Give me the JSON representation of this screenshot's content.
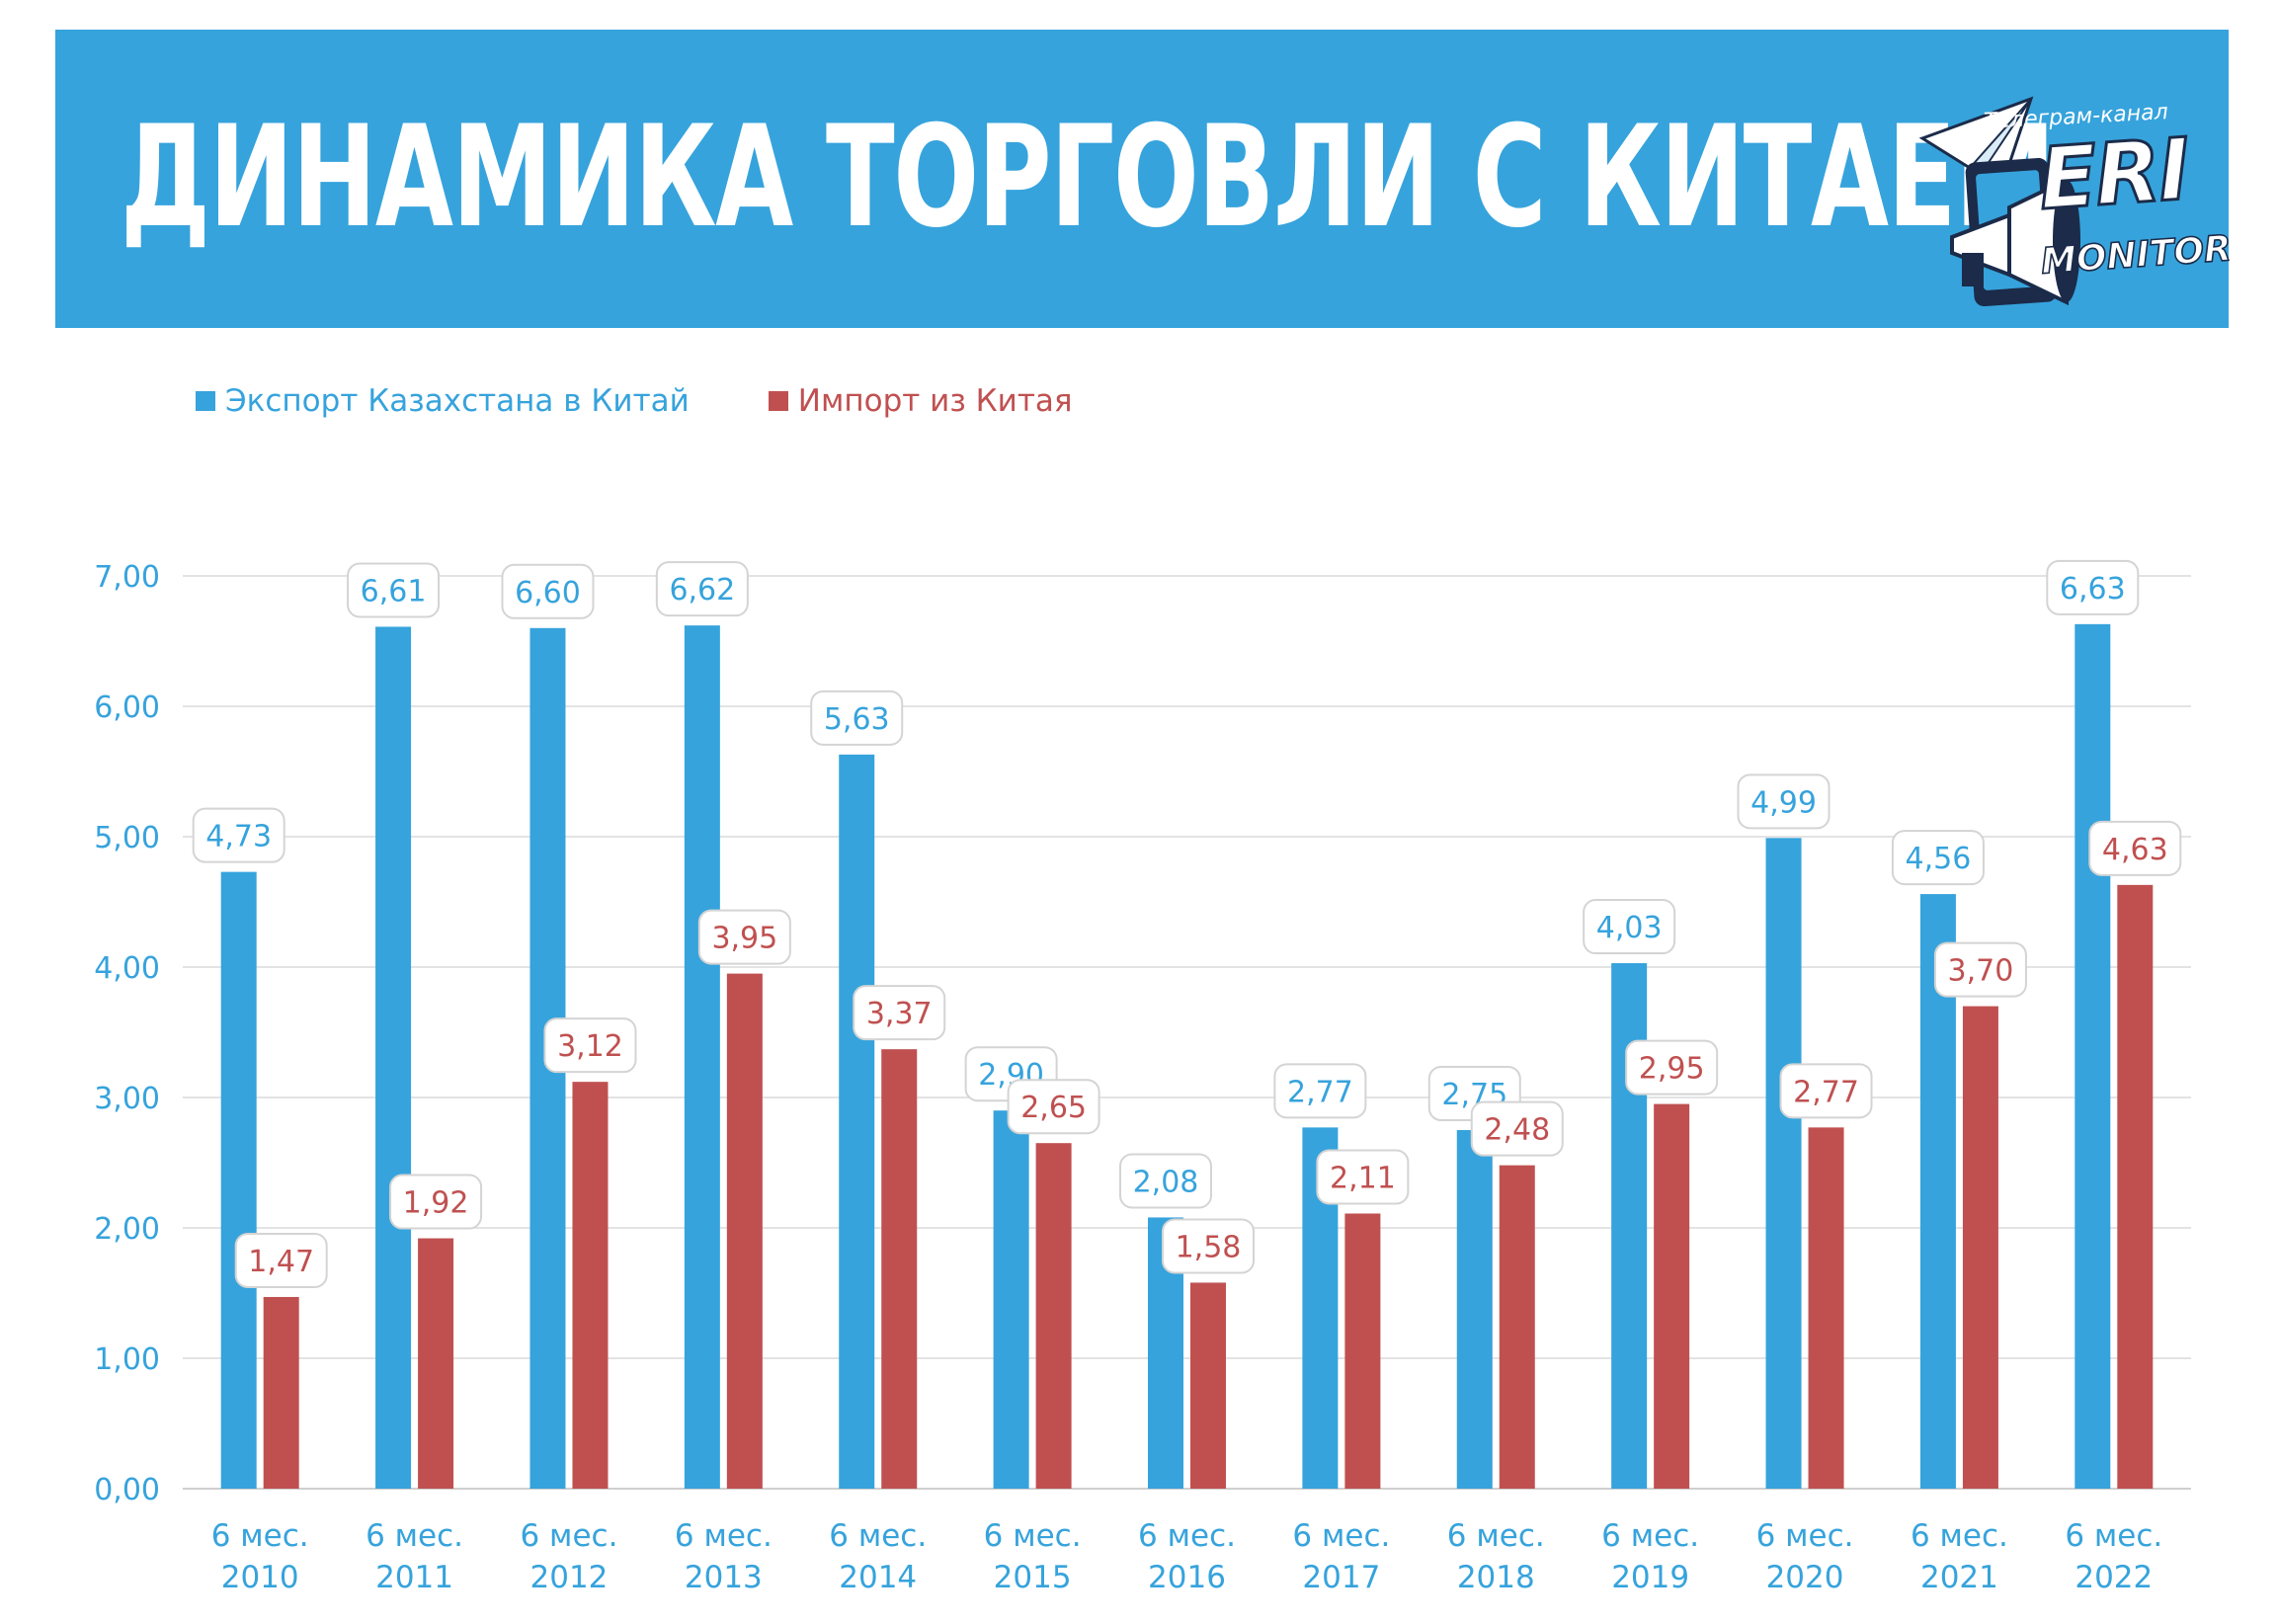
{
  "header": {
    "title": "ДИНАМИКА ТОРГОВЛИ С КИТАЕМ",
    "logo_caption": "Телеграм-канал",
    "logo_name": "ERI",
    "logo_subname": "MONITOR",
    "background_color": "#36a3dc"
  },
  "chart_data": {
    "type": "bar",
    "categories": [
      "6 мес. 2010",
      "6 мес. 2011",
      "6 мес. 2012",
      "6 мес. 2013",
      "6 мес. 2014",
      "6 мес. 2015",
      "6 мес. 2016",
      "6 мес. 2017",
      "6 мес. 2018",
      "6 мес. 2019",
      "6 мес. 2020",
      "6 мес. 2021",
      "6 мес. 2022"
    ],
    "series": [
      {
        "name": "Экспорт Казахстана в Китай",
        "color": "#36a3dc",
        "values": [
          4.73,
          6.61,
          6.6,
          6.62,
          5.63,
          2.9,
          2.08,
          2.77,
          2.75,
          4.03,
          4.99,
          4.56,
          6.63
        ],
        "labels": [
          "4,73",
          "6,61",
          "6,60",
          "6,62",
          "5,63",
          "2,90",
          "2,08",
          "2,77",
          "2,75",
          "4,03",
          "4,99",
          "4,56",
          "6,63"
        ]
      },
      {
        "name": "Импорт из Китая",
        "color": "#c05050",
        "values": [
          1.47,
          1.92,
          3.12,
          3.95,
          3.37,
          2.65,
          1.58,
          2.11,
          2.48,
          2.95,
          2.77,
          3.7,
          4.63
        ],
        "labels": [
          "1,47",
          "1,92",
          "3,12",
          "3,95",
          "3,37",
          "2,65",
          "1,58",
          "2,11",
          "2,48",
          "2,95",
          "2,77",
          "3,70",
          "4,63"
        ]
      }
    ],
    "yticks": [
      "0,00",
      "1,00",
      "2,00",
      "3,00",
      "4,00",
      "5,00",
      "6,00",
      "7,00"
    ],
    "ylim": [
      0,
      7
    ],
    "grid": true,
    "legend_position": "top-left"
  }
}
